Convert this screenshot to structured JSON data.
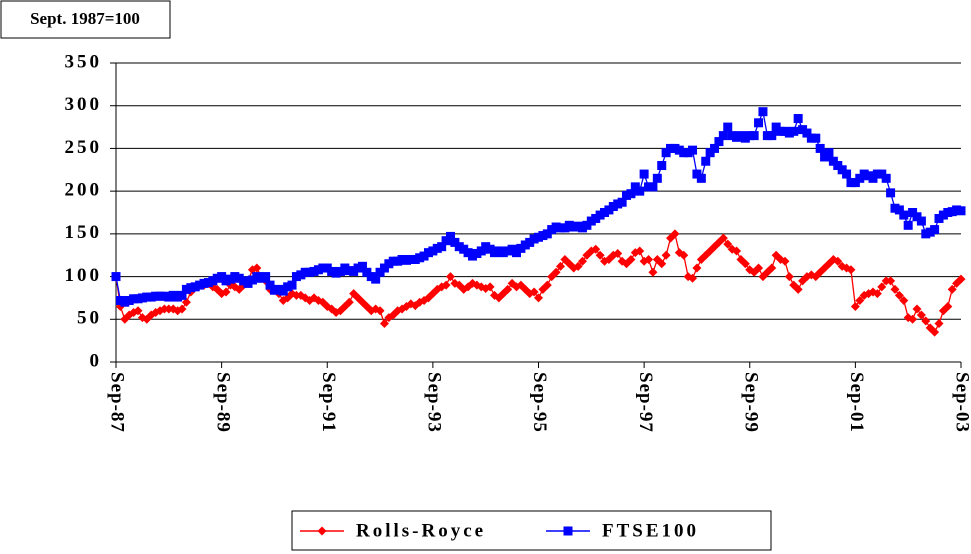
{
  "chart_data": {
    "type": "line",
    "annotation": "Sept. 1987=100",
    "categories": [
      "Sep-87",
      null,
      null,
      null,
      null,
      null,
      null,
      null,
      null,
      null,
      null,
      null,
      null,
      null,
      null,
      null,
      null,
      null,
      null,
      null,
      null,
      null,
      null,
      null,
      "Sep-89",
      null,
      null,
      null,
      null,
      null,
      null,
      null,
      null,
      null,
      null,
      null,
      null,
      null,
      null,
      null,
      null,
      null,
      null,
      null,
      null,
      null,
      null,
      null,
      "Sep-91",
      null,
      null,
      null,
      null,
      null,
      null,
      null,
      null,
      null,
      null,
      null,
      null,
      null,
      null,
      null,
      null,
      null,
      null,
      null,
      null,
      null,
      null,
      null,
      "Sep-93",
      null,
      null,
      null,
      null,
      null,
      null,
      null,
      null,
      null,
      null,
      null,
      null,
      null,
      null,
      null,
      null,
      null,
      null,
      null,
      null,
      null,
      null,
      null,
      "Sep-95",
      null,
      null,
      null,
      null,
      null,
      null,
      null,
      null,
      null,
      null,
      null,
      null,
      null,
      null,
      null,
      null,
      null,
      null,
      null,
      null,
      null,
      null,
      null,
      "Sep-97",
      null,
      null,
      null,
      null,
      null,
      null,
      null,
      null,
      null,
      null,
      null,
      null,
      null,
      null,
      null,
      null,
      null,
      null,
      null,
      null,
      null,
      null,
      null,
      "Sep-99",
      null,
      null,
      null,
      null,
      null,
      null,
      null,
      null,
      null,
      null,
      null,
      null,
      null,
      null,
      null,
      null,
      null,
      null,
      null,
      null,
      null,
      null,
      null,
      "Sep-01",
      null,
      null,
      null,
      null,
      null,
      null,
      null,
      null,
      null,
      null,
      null,
      null,
      null,
      null,
      null,
      null,
      null,
      null,
      null,
      null,
      null,
      null,
      null,
      "Sep-03"
    ],
    "series": [
      {
        "name": "Rolls-Royce",
        "color": "#ff0000",
        "marker": "diamond",
        "values": [
          100,
          65,
          50,
          55,
          58,
          60,
          52,
          50,
          55,
          58,
          60,
          62,
          62,
          62,
          60,
          62,
          70,
          82,
          88,
          90,
          90,
          92,
          88,
          85,
          80,
          82,
          90,
          88,
          85,
          90,
          95,
          108,
          110,
          100,
          95,
          85,
          85,
          80,
          72,
          75,
          80,
          78,
          78,
          75,
          72,
          75,
          72,
          70,
          65,
          62,
          58,
          60,
          65,
          70,
          80,
          75,
          70,
          65,
          60,
          62,
          60,
          45,
          52,
          55,
          60,
          62,
          65,
          68,
          66,
          70,
          72,
          75,
          80,
          85,
          88,
          90,
          100,
          92,
          90,
          85,
          88,
          92,
          90,
          88,
          86,
          88,
          78,
          75,
          80,
          85,
          92,
          88,
          90,
          85,
          80,
          82,
          75,
          85,
          90,
          100,
          105,
          112,
          120,
          115,
          110,
          112,
          118,
          125,
          130,
          132,
          125,
          118,
          120,
          125,
          127,
          118,
          115,
          120,
          128,
          130,
          118,
          120,
          105,
          120,
          115,
          125,
          145,
          150,
          128,
          125,
          100,
          98,
          110,
          120,
          125,
          130,
          135,
          140,
          145,
          138,
          132,
          130,
          120,
          115,
          108,
          105,
          110,
          100,
          105,
          110,
          125,
          120,
          118,
          100,
          90,
          85,
          95,
          100,
          102,
          100,
          105,
          110,
          115,
          120,
          118,
          112,
          110,
          108,
          65,
          72,
          78,
          80,
          82,
          80,
          88,
          95,
          95,
          85,
          78,
          72,
          52,
          50,
          62,
          55,
          48,
          40,
          35,
          45,
          60,
          65,
          85,
          92,
          97
        ]
      },
      {
        "name": "FTSE100",
        "color": "#0000ff",
        "marker": "square",
        "values": [
          100,
          72,
          70,
          72,
          74,
          74,
          75,
          76,
          76,
          77,
          77,
          77,
          76,
          78,
          76,
          78,
          85,
          87,
          88,
          90,
          92,
          93,
          95,
          98,
          100,
          95,
          97,
          100,
          98,
          95,
          92,
          96,
          100,
          98,
          100,
          90,
          84,
          85,
          83,
          88,
          90,
          100,
          102,
          105,
          105,
          106,
          108,
          110,
          110,
          106,
          104,
          106,
          110,
          107,
          106,
          110,
          112,
          105,
          100,
          97,
          105,
          110,
          115,
          118,
          118,
          120,
          119,
          120,
          120,
          122,
          124,
          128,
          130,
          133,
          135,
          142,
          147,
          140,
          135,
          132,
          128,
          124,
          127,
          130,
          135,
          132,
          128,
          130,
          128,
          130,
          132,
          128,
          133,
          137,
          140,
          144,
          146,
          148,
          150,
          155,
          158,
          157,
          157,
          160,
          158,
          159,
          157,
          160,
          165,
          168,
          172,
          175,
          178,
          182,
          185,
          187,
          195,
          197,
          205,
          200,
          220,
          205,
          205,
          215,
          230,
          245,
          250,
          250,
          248,
          245,
          245,
          248,
          220,
          215,
          235,
          245,
          250,
          258,
          265,
          275,
          265,
          263,
          265,
          262,
          265,
          265,
          280,
          293,
          265,
          265,
          275,
          270,
          270,
          268,
          270,
          285,
          272,
          268,
          262,
          262,
          250,
          240,
          245,
          235,
          230,
          225,
          220,
          210,
          210,
          215,
          220,
          218,
          215,
          220,
          220,
          215,
          198,
          180,
          178,
          172,
          160,
          175,
          170,
          165,
          150,
          152,
          155,
          168,
          172,
          175,
          176,
          178,
          177
        ]
      }
    ],
    "ylim": [
      0,
      350
    ],
    "yticks": [
      0,
      50,
      100,
      150,
      200,
      250,
      300,
      350
    ],
    "grid": true,
    "legend": "bottom"
  }
}
